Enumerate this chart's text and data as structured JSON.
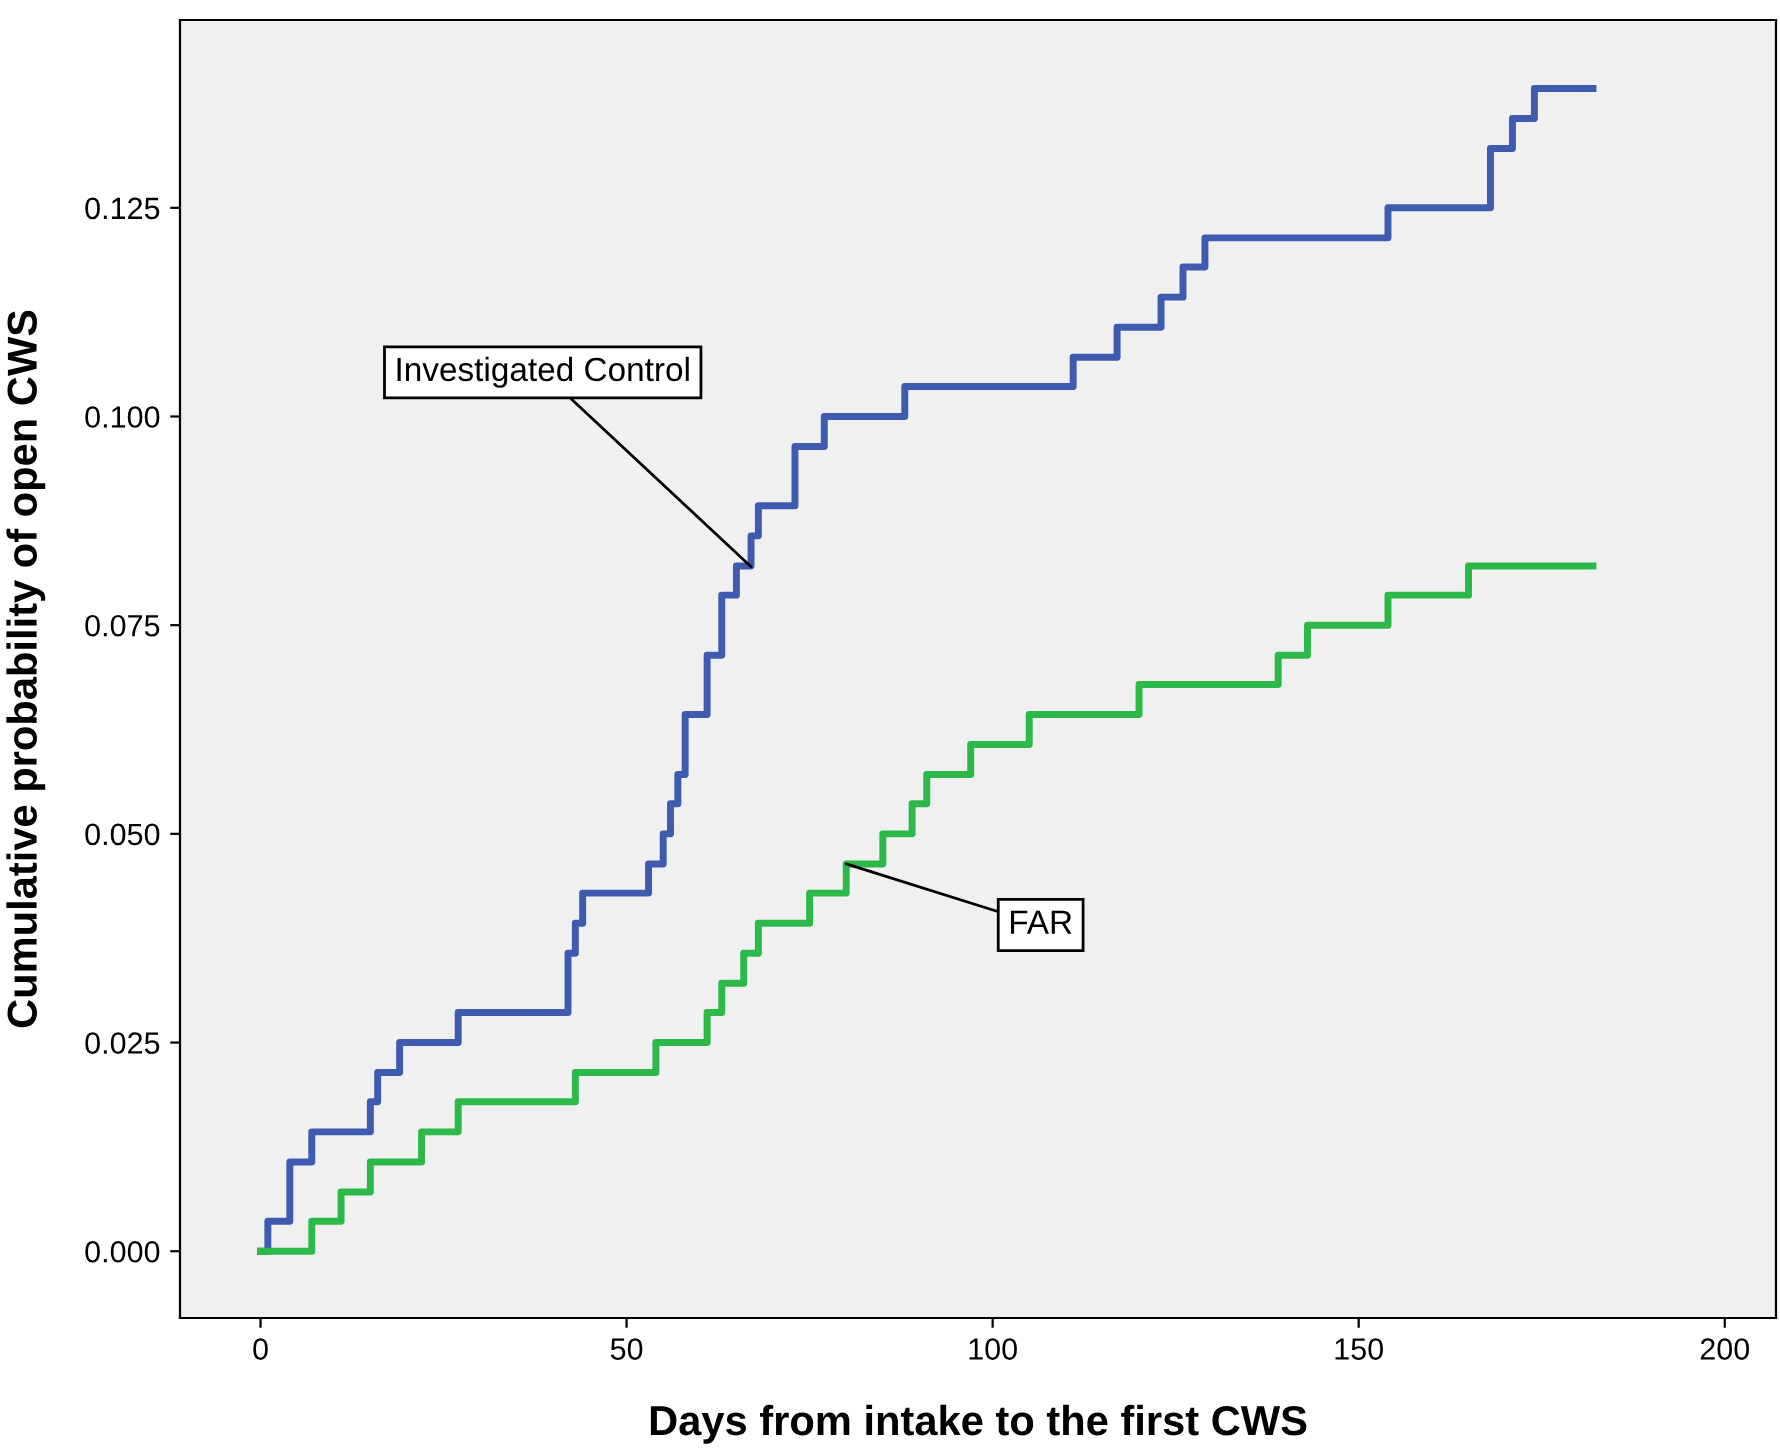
{
  "chart_data": {
    "type": "step",
    "xlabel": "Days from intake to the first CWS",
    "ylabel": "Cumulative probability of open CWS",
    "xlim": [
      -11,
      207
    ],
    "ylim": [
      -0.008,
      0.1475
    ],
    "xticks": [
      0,
      50,
      100,
      150,
      200
    ],
    "yticks": [
      {
        "value": 0,
        "label": "0.000"
      },
      {
        "value": 0.025,
        "label": "0.025"
      },
      {
        "value": 0.05,
        "label": "0.050"
      },
      {
        "value": 0.075,
        "label": "0.075"
      },
      {
        "value": 0.1,
        "label": "0.100"
      },
      {
        "value": 0.125,
        "label": "0.125"
      }
    ],
    "grid": false,
    "series": [
      {
        "color": "#3f5bb0",
        "x": [
          0,
          1,
          4,
          7,
          15,
          16,
          19,
          27,
          42,
          43,
          44,
          53,
          55,
          56,
          57,
          58,
          61,
          63,
          65,
          67,
          68,
          73,
          77,
          88,
          111,
          117,
          123,
          126,
          129,
          154,
          168,
          171,
          174,
          182
        ],
        "values": [
          0,
          0.0036,
          0.0107,
          0.0143,
          0.0179,
          0.0214,
          0.025,
          0.0286,
          0.0357,
          0.0393,
          0.0429,
          0.0464,
          0.05,
          0.0536,
          0.0571,
          0.0643,
          0.0714,
          0.0786,
          0.0821,
          0.0857,
          0.0893,
          0.0964,
          0.1,
          0.1036,
          0.1071,
          0.1107,
          0.1143,
          0.1179,
          0.1214,
          0.125,
          0.1321,
          0.1357,
          0.1393,
          0.1393
        ]
      },
      {
        "color": "#2db84a",
        "x": [
          0,
          7,
          11,
          15,
          22,
          27,
          43,
          54,
          61,
          63,
          66,
          68,
          75,
          80,
          85,
          89,
          91,
          97,
          105,
          120,
          139,
          143,
          154,
          165,
          182
        ],
        "values": [
          0,
          0.0036,
          0.0071,
          0.0107,
          0.0143,
          0.0179,
          0.0214,
          0.025,
          0.0286,
          0.0321,
          0.0357,
          0.0393,
          0.0429,
          0.0464,
          0.05,
          0.0536,
          0.0571,
          0.0607,
          0.0643,
          0.0679,
          0.0714,
          0.075,
          0.0786,
          0.0821,
          0.0821
        ]
      }
    ],
    "annotations": [
      {
        "text": "Investigated Control",
        "x": 67,
        "y": 0.082
      },
      {
        "text": "FAR",
        "x": 80,
        "y": 0.0464
      }
    ]
  }
}
